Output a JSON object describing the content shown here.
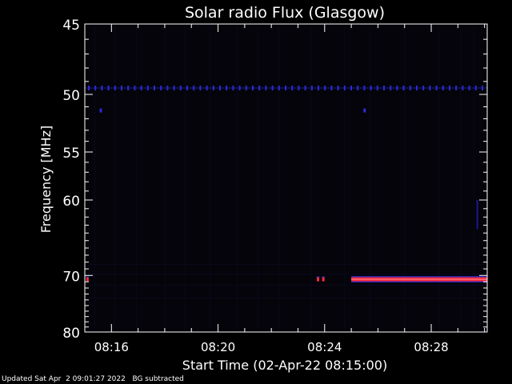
{
  "chart_data": {
    "type": "heatmap",
    "title": "Solar radio Flux (Glasgow)",
    "xlabel": "Start Time (02-Apr-22 08:15:00)",
    "ylabel": "Frequency [MHz]",
    "x_ticks": [
      "08:16",
      "08:20",
      "08:24",
      "08:28"
    ],
    "x_tick_minutes": [
      1,
      5,
      9,
      13
    ],
    "xlim_minutes_after_start": [
      0,
      15.1
    ],
    "y_ticks": [
      45,
      50,
      55,
      60,
      70,
      80
    ],
    "ylim": [
      45,
      80
    ],
    "y_scale": "reciprocal",
    "background_color": "#000000",
    "features": [
      {
        "kind": "dotted-band",
        "frequency_mhz": 49.5,
        "color": "#2a2ad8",
        "x_start_minutes": 0,
        "x_end_minutes": 15.1
      },
      {
        "kind": "spot",
        "frequency_mhz": 51.3,
        "color": "#2a2ad8",
        "x_minutes": 0.6
      },
      {
        "kind": "spot",
        "frequency_mhz": 51.3,
        "color": "#2a2ad8",
        "x_minutes": 10.5
      },
      {
        "kind": "spot",
        "frequency_mhz": 70.6,
        "color": "#ff2a3a",
        "x_minutes": 0.1
      },
      {
        "kind": "spot",
        "frequency_mhz": 70.6,
        "color": "#ff2a3a",
        "x_minutes": 8.75
      },
      {
        "kind": "spot",
        "frequency_mhz": 70.6,
        "color": "#ff2a3a",
        "x_minutes": 8.95
      },
      {
        "kind": "band",
        "frequency_mhz": 70.6,
        "color": "#ff2a3a",
        "x_start_minutes": 10.0,
        "x_end_minutes": 15.1
      },
      {
        "kind": "faint-line",
        "frequency_mhz_start": 60.0,
        "frequency_mhz_end": 63.5,
        "color": "#1a1a90",
        "x_minutes": 14.7
      }
    ]
  },
  "footer": {
    "updated": "Updated Sat Apr  2 09:01:27 2022",
    "note": "BG subtracted"
  }
}
